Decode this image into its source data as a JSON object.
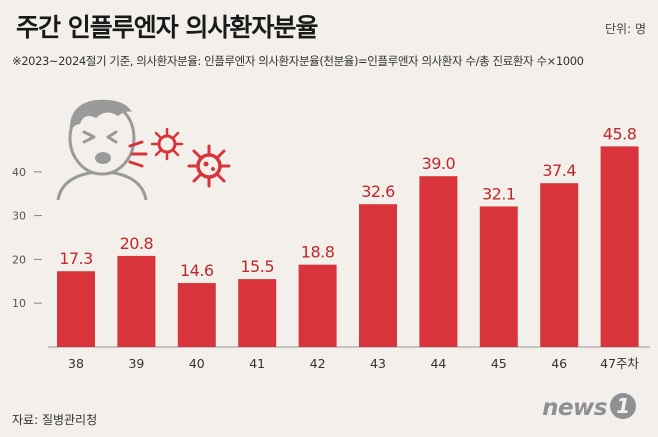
{
  "title": "주간 인플루엔자 의사환자분율",
  "unit": "단위: 명",
  "subtitle": "※2023~2024절기 기준, 의사환자분율: 인플루엔자 의사환자분율(천분율)=인플루엔자 의사환자 수/총 진료환자 수×1000",
  "source": "자료: 질병관리청",
  "logo": {
    "text": "news",
    "mark": "1"
  },
  "colors": {
    "bar": "#d9343b",
    "label": "#c1272d",
    "background": "#f3f0eb",
    "virus": "#d9343b"
  },
  "illustration": "sneezing-person-with-virus-icon",
  "chart_data": {
    "type": "bar",
    "title": "주간 인플루엔자 의사환자분율",
    "categories": [
      "38",
      "39",
      "40",
      "41",
      "42",
      "43",
      "44",
      "45",
      "46",
      "47주차"
    ],
    "values": [
      17.3,
      20.8,
      14.6,
      15.5,
      18.8,
      32.6,
      39.0,
      32.1,
      37.4,
      45.8
    ],
    "data_labels": [
      "17.3",
      "20.8",
      "14.6",
      "15.5",
      "18.8",
      "32.6",
      "39.0",
      "32.1",
      "37.4",
      "45.8"
    ],
    "yticks": [
      "10",
      "20",
      "30",
      "40"
    ],
    "ylim": [
      0,
      50
    ],
    "xlabel": "",
    "ylabel": "",
    "grid": false
  }
}
